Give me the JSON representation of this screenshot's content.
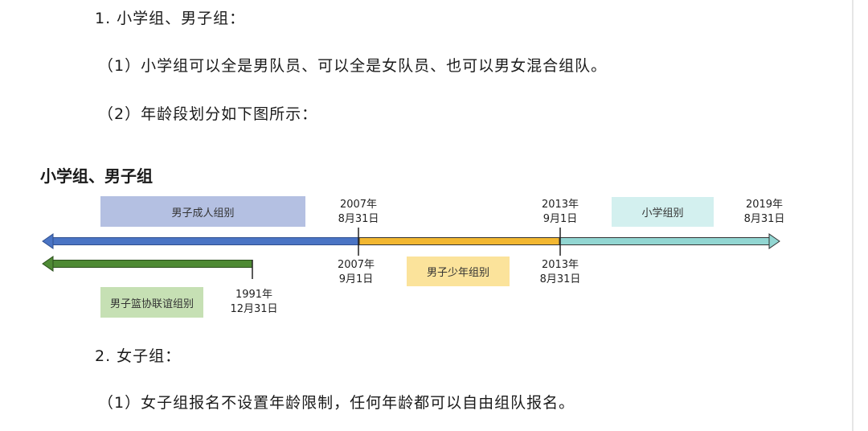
{
  "paragraphs": {
    "p1": "1. 小学组、男子组：",
    "p2": "（1）小学组可以全是男队员、可以全是女队员、也可以男女混合组队。",
    "p3": "（2）年龄段划分如下图所示：",
    "p4": "2. 女子组：",
    "p5": "（1）女子组报名不设置年龄限制，任何年龄都可以自由组队报名。"
  },
  "diagram": {
    "title": "小学组、男子组",
    "groups": {
      "adult": "男子成人组别",
      "youth": "男子少年组别",
      "primary": "小学组别",
      "league": "男子篮协联谊组别"
    },
    "dates": {
      "d2007_a": [
        "2007年",
        "8月31日"
      ],
      "d2007_b": [
        "2007年",
        "9月1日"
      ],
      "d2013_a": [
        "2013年",
        "9月1日"
      ],
      "d2013_b": [
        "2013年",
        "8月31日"
      ],
      "d2019": [
        "2019年",
        "8月31日"
      ],
      "d1991": [
        "1991年",
        "12月31日"
      ]
    },
    "colors": {
      "adult_box": "#b4c0e2",
      "youth_box": "#fbe39b",
      "primary_box": "#d3f0ef",
      "league_box": "#c6e0b4",
      "blue_bar": "#4a74c4",
      "orange_bar": "#f2b731",
      "teal_bar": "#92d6d2",
      "green_bar": "#4e8a34"
    }
  }
}
